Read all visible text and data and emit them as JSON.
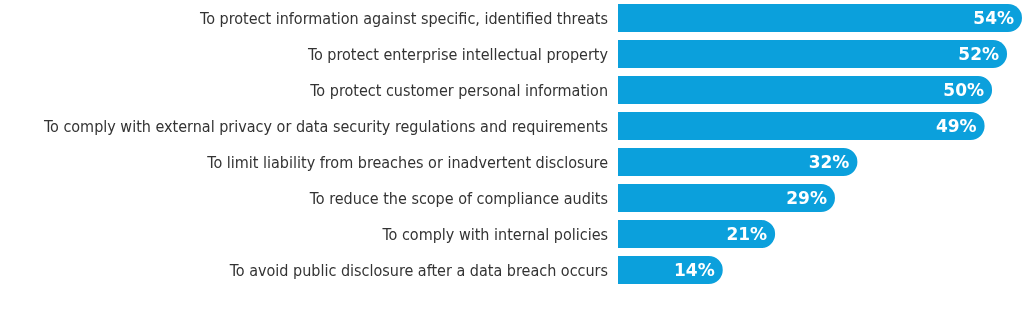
{
  "chart_data": {
    "type": "bar",
    "orientation": "horizontal",
    "categories": [
      "To protect information against specific, identified threats",
      "To protect enterprise intellectual property",
      "To protect customer personal information",
      "To comply with external privacy or data security regulations and requirements",
      "To limit liability from breaches or inadvertent disclosure",
      "To reduce the scope of compliance audits",
      "To comply with internal policies",
      "To avoid public disclosure after a data breach occurs"
    ],
    "values": [
      54,
      52,
      50,
      49,
      32,
      29,
      21,
      14
    ],
    "color": "#0ba0dc",
    "data_labels": true,
    "value_labels": [
      "54%",
      "52%",
      "50%",
      "49%",
      "32%",
      "29%",
      "21%",
      "14%"
    ]
  }
}
